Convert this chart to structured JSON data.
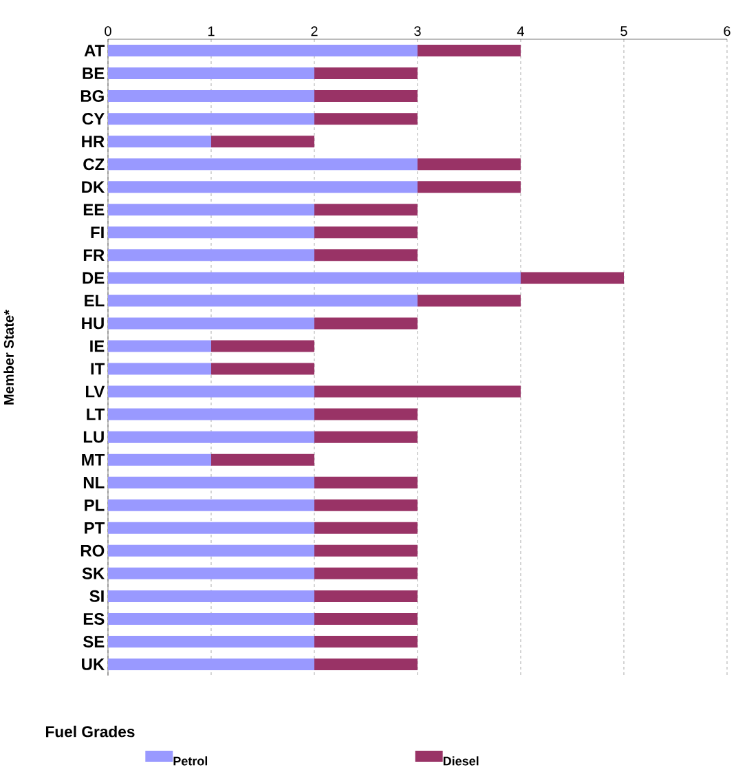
{
  "chart_data": {
    "type": "bar",
    "orientation": "horizontal",
    "stacked": true,
    "ylabel": "Member State*",
    "legend_title": "Fuel Grades",
    "legend": "bottom",
    "grid": "x",
    "categories": [
      "AT",
      "BE",
      "BG",
      "CY",
      "HR",
      "CZ",
      "DK",
      "EE",
      "FI",
      "FR",
      "DE",
      "EL",
      "HU",
      "IE",
      "IT",
      "LV",
      "LT",
      "LU",
      "MT",
      "NL",
      "PL",
      "PT",
      "RO",
      "SK",
      "SI",
      "ES",
      "SE",
      "UK"
    ],
    "series": [
      {
        "name": "Petrol",
        "color": "#9999ff",
        "values": [
          3,
          2,
          2,
          2,
          1,
          3,
          3,
          2,
          2,
          2,
          4,
          3,
          2,
          1,
          1,
          2,
          2,
          2,
          1,
          2,
          2,
          2,
          2,
          2,
          2,
          2,
          2,
          2
        ]
      },
      {
        "name": "Diesel",
        "color": "#993366",
        "values": [
          1,
          1,
          1,
          1,
          1,
          1,
          1,
          1,
          1,
          1,
          1,
          1,
          1,
          1,
          1,
          2,
          1,
          1,
          1,
          1,
          1,
          1,
          1,
          1,
          1,
          1,
          1,
          1
        ]
      }
    ],
    "xlim": [
      0,
      6
    ],
    "xticks": [
      0,
      1,
      2,
      3,
      4,
      5,
      6
    ]
  }
}
